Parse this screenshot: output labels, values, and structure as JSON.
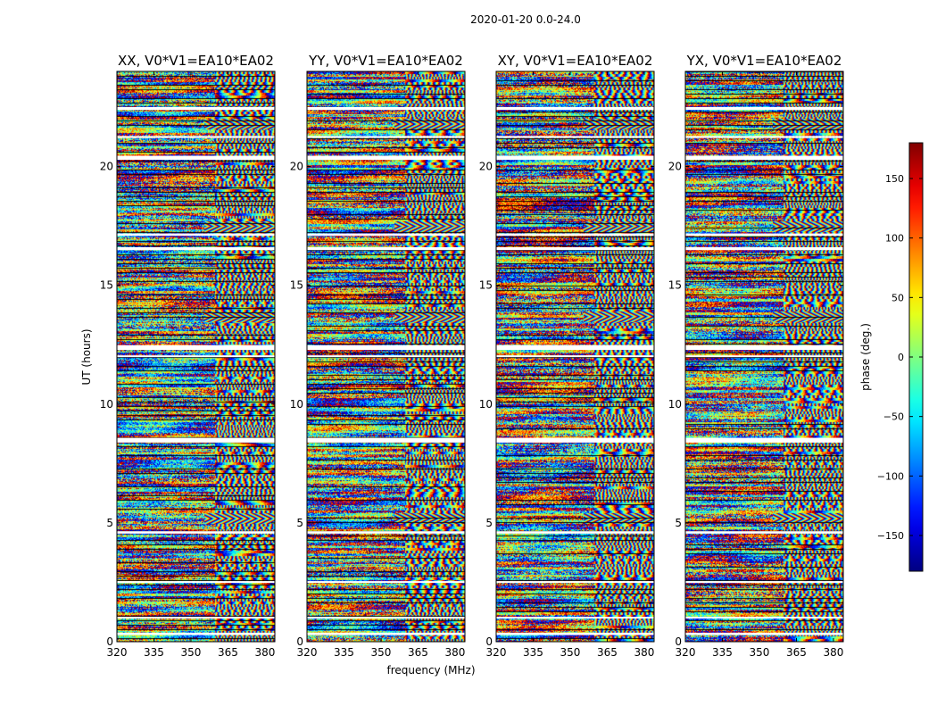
{
  "chart_data": {
    "type": "heatmap",
    "suptitle": "2020-01-20 0.0-24.0",
    "xlabel": "frequency (MHz)",
    "ylabel": "UT (hours)",
    "xlim": [
      320,
      384
    ],
    "ylim": [
      0,
      24
    ],
    "xticks": [
      "320",
      "335",
      "350",
      "365",
      "380"
    ],
    "yticks": [
      "0",
      "5",
      "10",
      "15",
      "20"
    ],
    "panels": [
      {
        "title": "XX, V0*V1=EA10*EA02"
      },
      {
        "title": "YY, V0*V1=EA10*EA02"
      },
      {
        "title": "XY, V0*V1=EA10*EA02"
      },
      {
        "title": "YX, V0*V1=EA10*EA02"
      }
    ],
    "colorbar": {
      "label": "phase (deg.)",
      "range": [
        -180,
        180
      ],
      "ticks": [
        "150",
        "100",
        "50",
        "0",
        "−50",
        "−100",
        "−150"
      ],
      "tick_values": [
        150,
        100,
        50,
        0,
        -50,
        -100,
        -150
      ],
      "colormap": "jet"
    },
    "flagged_ut_hours": [
      [
        0.28,
        0.38
      ],
      [
        0.98,
        1.05
      ],
      [
        2.48,
        2.55
      ],
      [
        4.55,
        4.65
      ],
      [
        8.38,
        8.58
      ],
      [
        11.98,
        12.05
      ],
      [
        12.28,
        12.48
      ],
      [
        16.48,
        16.6
      ],
      [
        17.08,
        17.18
      ],
      [
        20.28,
        20.45
      ],
      [
        21.2,
        21.28
      ],
      [
        22.38,
        22.5
      ]
    ],
    "strong_phase_ramps_ut_hours": [
      5.2,
      13.7,
      17.5,
      21.8
    ]
  }
}
